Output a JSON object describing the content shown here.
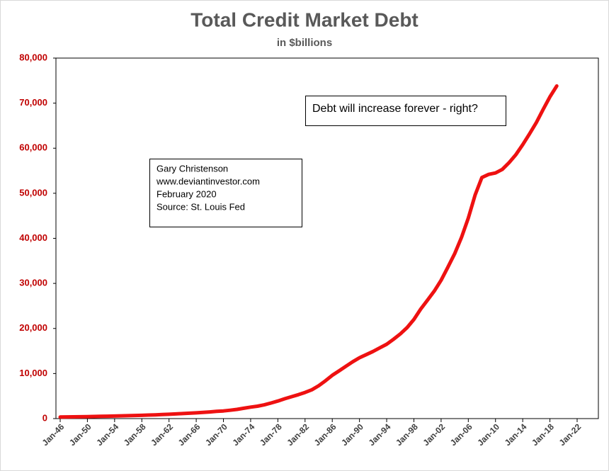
{
  "chart_data": {
    "type": "line",
    "title": "Total Credit Market Debt",
    "subtitle": "in $billions",
    "categories": [
      "Jan-46",
      null,
      null,
      null,
      "Jan-50",
      null,
      null,
      null,
      "Jan-54",
      null,
      null,
      null,
      "Jan-58",
      null,
      null,
      null,
      "Jan-62",
      null,
      null,
      null,
      "Jan-66",
      null,
      null,
      null,
      "Jan-70",
      null,
      null,
      null,
      "Jan-74",
      null,
      null,
      null,
      "Jan-78",
      null,
      null,
      null,
      "Jan-82",
      null,
      null,
      null,
      "Jan-86",
      null,
      null,
      null,
      "Jan-90",
      null,
      null,
      null,
      "Jan-94",
      null,
      null,
      null,
      "Jan-98",
      null,
      null,
      null,
      "Jan-02",
      null,
      null,
      null,
      "Jan-06",
      null,
      null,
      null,
      "Jan-10",
      null,
      null,
      null,
      "Jan-14",
      null,
      null,
      null,
      "Jan-18",
      null,
      null,
      null,
      "Jan-22"
    ],
    "series": [
      {
        "name": "Total Credit Market Debt",
        "color": "#ee1111",
        "values": [
          350,
          370,
          390,
          410,
          440,
          470,
          500,
          530,
          560,
          610,
          650,
          690,
          730,
          790,
          840,
          890,
          960,
          1030,
          1110,
          1200,
          1280,
          1370,
          1480,
          1600,
          1700,
          1850,
          2050,
          2300,
          2550,
          2750,
          3050,
          3450,
          3900,
          4400,
          4850,
          5300,
          5800,
          6400,
          7300,
          8400,
          9600,
          10600,
          11600,
          12600,
          13500,
          14200,
          14900,
          15700,
          16500,
          17600,
          18800,
          20200,
          22000,
          24300,
          26300,
          28300,
          30700,
          33600,
          36600,
          40200,
          44500,
          49600,
          53500,
          54200,
          54500,
          55300,
          56800,
          58600,
          60800,
          63200,
          65700,
          68600,
          71400,
          73800,
          null,
          null,
          null
        ]
      }
    ],
    "ylim": [
      0,
      80000
    ],
    "yticks": [
      0,
      {
        "value": 10000,
        "label": "10,000"
      },
      {
        "value": 20000,
        "label": "20,000"
      },
      {
        "value": 30000,
        "label": "30,000"
      },
      {
        "value": 40000,
        "label": "40,000"
      },
      {
        "value": 50000,
        "label": "50,000"
      },
      {
        "value": 60000,
        "label": "60,000"
      },
      {
        "value": 70000,
        "label": "70,000"
      },
      {
        "value": 80000,
        "label": "80,000"
      }
    ],
    "grid": false,
    "annotations": [
      "Debt will increase forever - right?"
    ],
    "note": [
      "Gary Christenson",
      "www.deviantinvestor.com",
      "February 2020",
      "Source: St. Louis Fed"
    ]
  }
}
